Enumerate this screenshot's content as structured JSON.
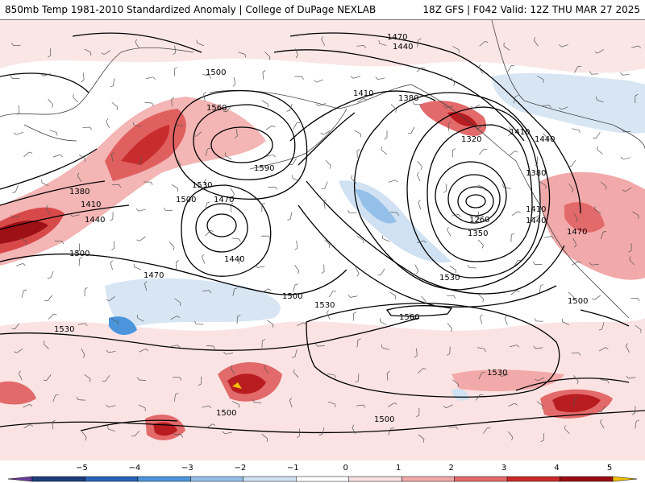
{
  "header": {
    "title_left": "850mb Temp 1981-2010 Standardized Anomaly | College of DuPage NEXLAB",
    "title_right": "18Z GFS | F042 Valid: 12Z THU MAR 27 2025"
  },
  "contour_labels": [
    {
      "text": "1470"
    },
    {
      "text": "1440"
    },
    {
      "text": "1500"
    },
    {
      "text": "1560"
    },
    {
      "text": "1590"
    },
    {
      "text": "1530"
    },
    {
      "text": "1500"
    },
    {
      "text": "1470"
    },
    {
      "text": "1410"
    },
    {
      "text": "1380"
    },
    {
      "text": "1320"
    },
    {
      "text": "1410"
    },
    {
      "text": "1440"
    },
    {
      "text": "1380"
    },
    {
      "text": "1260"
    },
    {
      "text": "1350"
    },
    {
      "text": "1410"
    },
    {
      "text": "1440"
    },
    {
      "text": "1470"
    },
    {
      "text": "1380"
    },
    {
      "text": "1410"
    },
    {
      "text": "1440"
    },
    {
      "text": "1500"
    },
    {
      "text": "1440"
    },
    {
      "text": "1470"
    },
    {
      "text": "1500"
    },
    {
      "text": "1530"
    },
    {
      "text": "1530"
    },
    {
      "text": "1560"
    },
    {
      "text": "1530"
    },
    {
      "text": "1530"
    },
    {
      "text": "1500"
    },
    {
      "text": "1500"
    },
    {
      "text": "1500"
    }
  ],
  "colorbar": {
    "ticks": [
      "−5",
      "−4",
      "−3",
      "−2",
      "−1",
      "0",
      "1",
      "2",
      "3",
      "4",
      "5"
    ],
    "colors": [
      "#6a3d9a",
      "#1f3f7a",
      "#2a62b8",
      "#4b95dc",
      "#93bfe8",
      "#cfe1f3",
      "#ffffff",
      "#fbe0e0",
      "#f2a9a9",
      "#e36a6a",
      "#cc2a2a",
      "#9a0c12",
      "#f2c200"
    ]
  }
}
